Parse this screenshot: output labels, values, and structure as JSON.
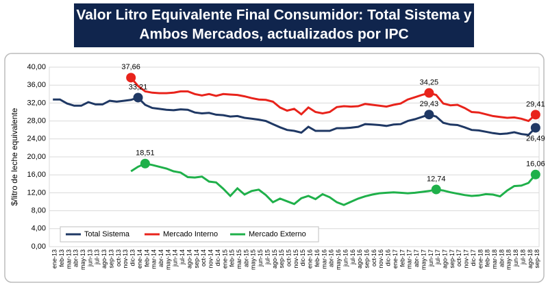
{
  "chart_data": {
    "type": "line",
    "title": [
      "Valor Litro Equivalente Final Consumidor: Total Sistema y",
      "Ambos Mercados, actualizados por IPC"
    ],
    "y_label": "$/litro de leche equivalente",
    "categories": [
      "ene-13",
      "feb-13",
      "mar-13",
      "abr-13",
      "may-13",
      "jun-13",
      "jul-13",
      "ago-13",
      "sep-13",
      "oct-13",
      "nov-13",
      "dic-13",
      "ene-14",
      "feb-14",
      "mar-14",
      "abr-14",
      "may-14",
      "jun-14",
      "jul-14",
      "ago-14",
      "sep-14",
      "oct-14",
      "nov-14",
      "dic-14",
      "ene-15",
      "feb-15",
      "mar-15",
      "abr-15",
      "may-15",
      "jun-15",
      "jul-15",
      "ago-15",
      "sep-15",
      "oct-15",
      "nov-15",
      "dic-15",
      "ene-16",
      "feb-16",
      "mar-16",
      "abr-16",
      "may-16",
      "jun-16",
      "jul-16",
      "ago-16",
      "sep-16",
      "oct-16",
      "nov-16",
      "dic-16",
      "ene-17",
      "feb-17",
      "mar-17",
      "abr-17",
      "may-17",
      "jun-17",
      "jul-17",
      "ago-17",
      "sep-17",
      "oct-17",
      "nov-17",
      "dic-17",
      "ene-18",
      "feb-18",
      "mar-18",
      "abr-18",
      "may-18",
      "jun-18",
      "jul-18",
      "ago-18",
      "sep-18"
    ],
    "series": [
      {
        "name": "Total Sistema",
        "color": "#1f3864",
        "values": [
          32.8,
          32.8,
          31.9,
          31.4,
          31.4,
          32.2,
          31.7,
          31.7,
          32.5,
          32.3,
          32.5,
          32.7,
          33.21,
          31.6,
          30.9,
          30.7,
          30.5,
          30.4,
          30.6,
          30.5,
          29.9,
          29.7,
          29.8,
          29.4,
          29.3,
          29.0,
          29.1,
          28.7,
          28.5,
          28.3,
          28.0,
          27.3,
          26.6,
          26.0,
          25.8,
          25.4,
          26.7,
          25.8,
          25.8,
          25.8,
          26.4,
          26.4,
          26.5,
          26.7,
          27.3,
          27.2,
          27.1,
          26.9,
          27.2,
          27.3,
          28.0,
          28.4,
          28.9,
          29.43,
          29.0,
          27.6,
          27.2,
          27.1,
          26.6,
          26.0,
          25.9,
          25.6,
          25.3,
          25.1,
          25.2,
          25.5,
          25.1,
          24.9,
          26.49
        ],
        "value_labels": [
          null,
          null,
          null,
          null,
          null,
          null,
          null,
          null,
          null,
          null,
          null,
          null,
          "33,21",
          null,
          null,
          null,
          null,
          null,
          null,
          null,
          null,
          null,
          null,
          null,
          null,
          null,
          null,
          null,
          null,
          null,
          null,
          null,
          null,
          null,
          null,
          null,
          null,
          null,
          null,
          null,
          null,
          null,
          null,
          null,
          null,
          null,
          null,
          null,
          null,
          null,
          null,
          null,
          null,
          "29,43",
          null,
          null,
          null,
          null,
          null,
          null,
          null,
          null,
          null,
          null,
          null,
          null,
          null,
          null,
          "26,49"
        ]
      },
      {
        "name": "Mercado Interno",
        "color": "#e8231b",
        "values": [
          null,
          null,
          null,
          null,
          null,
          null,
          null,
          null,
          null,
          null,
          null,
          37.66,
          35.8,
          34.6,
          34.3,
          34.2,
          34.2,
          34.3,
          34.6,
          34.6,
          34.0,
          33.7,
          34.0,
          33.6,
          34.0,
          33.9,
          33.8,
          33.5,
          33.1,
          32.8,
          32.7,
          32.3,
          31.0,
          30.3,
          30.7,
          29.5,
          31.0,
          30.0,
          29.7,
          30.0,
          31.1,
          31.3,
          31.2,
          31.3,
          31.8,
          31.6,
          31.4,
          31.2,
          31.6,
          31.9,
          32.8,
          33.3,
          33.8,
          34.25,
          33.8,
          31.9,
          31.5,
          31.6,
          30.9,
          30.0,
          29.9,
          29.5,
          29.1,
          28.9,
          28.7,
          28.8,
          28.5,
          28.0,
          29.41
        ],
        "value_labels": [
          null,
          null,
          null,
          null,
          null,
          null,
          null,
          null,
          null,
          null,
          null,
          "37,66",
          null,
          null,
          null,
          null,
          null,
          null,
          null,
          null,
          null,
          null,
          null,
          null,
          null,
          null,
          null,
          null,
          null,
          null,
          null,
          null,
          null,
          null,
          null,
          null,
          null,
          null,
          null,
          null,
          null,
          null,
          null,
          null,
          null,
          null,
          null,
          null,
          null,
          null,
          null,
          null,
          null,
          "34,25",
          null,
          null,
          null,
          null,
          null,
          null,
          null,
          null,
          null,
          null,
          null,
          null,
          null,
          null,
          "29,41"
        ]
      },
      {
        "name": "Mercado Externo",
        "color": "#1fb04a",
        "values": [
          null,
          null,
          null,
          null,
          null,
          null,
          null,
          null,
          null,
          null,
          null,
          16.8,
          17.8,
          18.51,
          18.2,
          17.8,
          17.4,
          16.8,
          16.5,
          15.5,
          15.4,
          15.6,
          14.5,
          14.3,
          12.9,
          11.3,
          13.0,
          11.6,
          12.4,
          12.7,
          11.5,
          9.9,
          10.7,
          10.1,
          9.5,
          10.8,
          11.3,
          10.6,
          11.7,
          11.0,
          9.9,
          9.3,
          10.0,
          10.7,
          11.2,
          11.6,
          11.9,
          12.0,
          12.1,
          12.0,
          11.9,
          12.0,
          12.2,
          12.4,
          12.74,
          12.5,
          12.1,
          11.8,
          11.5,
          11.3,
          11.4,
          11.7,
          11.6,
          11.2,
          12.5,
          13.5,
          13.6,
          14.2,
          16.06
        ],
        "value_labels": [
          null,
          null,
          null,
          null,
          null,
          null,
          null,
          null,
          null,
          null,
          null,
          null,
          null,
          "18,51",
          null,
          null,
          null,
          null,
          null,
          null,
          null,
          null,
          null,
          null,
          null,
          null,
          null,
          null,
          null,
          null,
          null,
          null,
          null,
          null,
          null,
          null,
          null,
          null,
          null,
          null,
          null,
          null,
          null,
          null,
          null,
          null,
          null,
          null,
          null,
          null,
          null,
          null,
          null,
          null,
          "12,74",
          null,
          null,
          null,
          null,
          null,
          null,
          null,
          null,
          null,
          null,
          null,
          null,
          null,
          "16,06"
        ]
      }
    ],
    "ylim": [
      0,
      40
    ],
    "yticks": [
      {
        "value": 0,
        "label": "0,00"
      },
      {
        "value": 4,
        "label": "4,00"
      },
      {
        "value": 8,
        "label": "8,00"
      },
      {
        "value": 12,
        "label": "12,00"
      },
      {
        "value": 16,
        "label": "16,00"
      },
      {
        "value": 20,
        "label": "20,00"
      },
      {
        "value": 24,
        "label": "24,00"
      },
      {
        "value": 28,
        "label": "28,00"
      },
      {
        "value": 32,
        "label": "32,00"
      },
      {
        "value": 36,
        "label": "36,00"
      },
      {
        "value": 40,
        "label": "40,00"
      }
    ],
    "grid": true,
    "legend": "bottom-left"
  }
}
